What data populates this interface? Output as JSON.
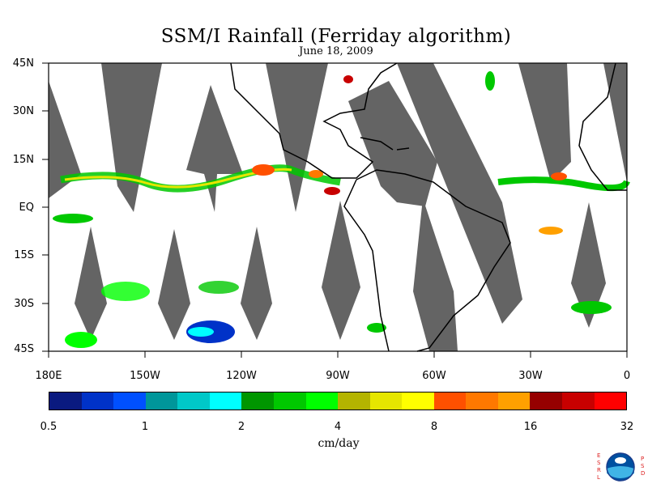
{
  "title": "SSM/I Rainfall (Ferriday algorithm)",
  "subtitle": "June 18, 2009",
  "lat_labels": [
    "45N",
    "30N",
    "15N",
    "EQ",
    "15S",
    "30S",
    "45S"
  ],
  "lon_labels": [
    "180E",
    "150W",
    "120W",
    "90W",
    "60W",
    "30W",
    "0"
  ],
  "colorbar": {
    "colors": [
      "#0a1a80",
      "#0032c8",
      "#0050ff",
      "#00969a",
      "#00c8c8",
      "#00ffff",
      "#009600",
      "#00c800",
      "#00ff00",
      "#b4b400",
      "#e6e600",
      "#ffff00",
      "#ff5000",
      "#ff7800",
      "#ffa000",
      "#960000",
      "#c80000",
      "#ff0000"
    ],
    "tick_labels": [
      "0.5",
      "1",
      "2",
      "4",
      "8",
      "16",
      "32"
    ],
    "units": "cm/day"
  },
  "colors": {
    "swath_gap": "#646464",
    "background": "#ffffff",
    "coastline": "#000000"
  },
  "logo": {
    "left_letters": "ESRL",
    "right_letters": "PSD"
  }
}
